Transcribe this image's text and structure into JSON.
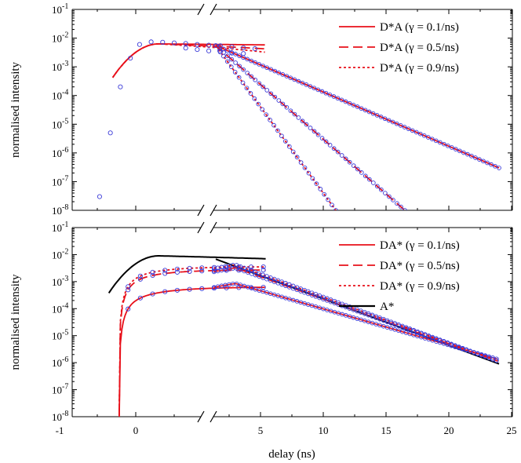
{
  "chart_data": [
    {
      "type": "line",
      "panel": "top",
      "ylabel": "normalised intensity",
      "xlabel": "",
      "yscale": "log",
      "ylim": [
        1e-08,
        0.1
      ],
      "x_break": true,
      "legend_position": "top-right",
      "y_ticks": [
        {
          "label": "10",
          "exp": "-8"
        },
        {
          "label": "10",
          "exp": "-7"
        },
        {
          "label": "10",
          "exp": "-6"
        },
        {
          "label": "10",
          "exp": "-5"
        },
        {
          "label": "10",
          "exp": "-4"
        },
        {
          "label": "10",
          "exp": "-3"
        },
        {
          "label": "10",
          "exp": "-2"
        },
        {
          "label": "10",
          "exp": "-1"
        }
      ],
      "series": [
        {
          "name": "D*A (γ = 0.1/ns)",
          "color": "#e8101a",
          "dash": "solid",
          "rate": 0.1,
          "peak": 0.0063,
          "tail_end": 3e-07
        },
        {
          "name": "D*A (γ = 0.5/ns)",
          "color": "#e8101a",
          "dash": "dashed",
          "rate": 0.5,
          "peak": 0.0063,
          "tail_end": 1e-08
        },
        {
          "name": "D*A (γ = 0.9/ns)",
          "color": "#e8101a",
          "dash": "dotted",
          "rate": 0.9,
          "peak": 0.0063,
          "tail_end": 1e-08
        }
      ],
      "markers_color": "#3a3ad8"
    },
    {
      "type": "line",
      "panel": "bottom",
      "ylabel": "normalised intensity",
      "xlabel": "delay (ns)",
      "yscale": "log",
      "ylim": [
        1e-08,
        0.1
      ],
      "x_break": true,
      "legend_position": "top-right",
      "x_ticks_left": [
        "-1",
        "0"
      ],
      "x_ticks_right": [
        "5",
        "10",
        "15",
        "20",
        "25"
      ],
      "y_ticks": [
        {
          "label": "10",
          "exp": "-8"
        },
        {
          "label": "10",
          "exp": "-7"
        },
        {
          "label": "10",
          "exp": "-6"
        },
        {
          "label": "10",
          "exp": "-5"
        },
        {
          "label": "10",
          "exp": "-4"
        },
        {
          "label": "10",
          "exp": "-3"
        },
        {
          "label": "10",
          "exp": "-2"
        },
        {
          "label": "10",
          "exp": "-1"
        }
      ],
      "series": [
        {
          "name": "DA* (γ = 0.1/ns)",
          "color": "#e8101a",
          "dash": "solid",
          "plateau": 0.0006
        },
        {
          "name": "DA* (γ = 0.5/ns)",
          "color": "#e8101a",
          "dash": "dashed",
          "plateau": 0.0025
        },
        {
          "name": "DA* (γ = 0.9/ns)",
          "color": "#e8101a",
          "dash": "dotted",
          "plateau": 0.0035
        },
        {
          "name": "A*",
          "color": "#000000",
          "dash": "solid",
          "plateau": 0.009
        }
      ],
      "markers_color": "#3a3ad8"
    }
  ]
}
